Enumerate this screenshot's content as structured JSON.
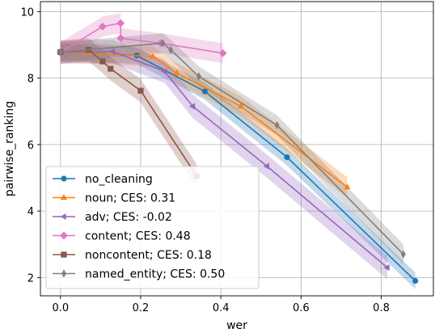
{
  "chart_data": {
    "type": "line",
    "title": "",
    "xlabel": "wer",
    "ylabel": "pairwise_ranking",
    "xlim": [
      -0.05,
      0.93
    ],
    "ylim": [
      1.45,
      10.3
    ],
    "xticks": [
      0.0,
      0.2,
      0.4,
      0.6,
      0.8
    ],
    "xtick_labels": [
      "0.0",
      "0.2",
      "0.4",
      "0.6",
      "0.8"
    ],
    "yticks": [
      2,
      4,
      6,
      8,
      10
    ],
    "ytick_labels": [
      "2",
      "4",
      "6",
      "8",
      "10"
    ],
    "grid": true,
    "legend_position": "lower-left",
    "series": [
      {
        "name": "no_cleaning",
        "color": "#1f77b4",
        "marker": "circle",
        "band": 0.25,
        "points": [
          [
            0.0,
            8.78
          ],
          [
            0.19,
            8.68
          ],
          [
            0.36,
            7.6
          ],
          [
            0.565,
            5.62
          ],
          [
            0.885,
            1.9
          ]
        ]
      },
      {
        "name": "noun; CES: 0.31",
        "color": "#ff7f0e",
        "marker": "triangle-up",
        "band": 0.3,
        "points": [
          [
            0.0,
            8.78
          ],
          [
            0.23,
            8.65
          ],
          [
            0.29,
            8.15
          ],
          [
            0.45,
            7.15
          ],
          [
            0.715,
            4.72
          ]
        ]
      },
      {
        "name": "adv; CES: -0.02",
        "color": "#9467bd",
        "marker": "triangle-left",
        "band": 0.35,
        "points": [
          [
            0.0,
            8.78
          ],
          [
            0.13,
            8.8
          ],
          [
            0.26,
            8.2
          ],
          [
            0.33,
            7.15
          ],
          [
            0.515,
            5.35
          ],
          [
            0.815,
            2.3
          ]
        ]
      },
      {
        "name": "content; CES: 0.48",
        "color": "#e377c2",
        "marker": "diamond",
        "band": 0.3,
        "points": [
          [
            0.0,
            8.78
          ],
          [
            0.105,
            9.55
          ],
          [
            0.15,
            9.65
          ],
          [
            0.15,
            9.2
          ],
          [
            0.25,
            9.05
          ],
          [
            0.405,
            8.75
          ]
        ]
      },
      {
        "name": "noncontent; CES: 0.18",
        "color": "#8c564b",
        "marker": "square",
        "band": 0.35,
        "points": [
          [
            0.0,
            8.78
          ],
          [
            0.07,
            8.85
          ],
          [
            0.105,
            8.5
          ],
          [
            0.125,
            8.28
          ],
          [
            0.2,
            7.62
          ],
          [
            0.34,
            5.05
          ]
        ]
      },
      {
        "name": "named_entity; CES: 0.50",
        "color": "#7f7f7f",
        "marker": "thin-diamond",
        "band": 0.3,
        "points": [
          [
            0.0,
            8.78
          ],
          [
            0.255,
            9.05
          ],
          [
            0.275,
            8.85
          ],
          [
            0.345,
            8.05
          ],
          [
            0.54,
            6.58
          ],
          [
            0.855,
            2.7
          ]
        ]
      }
    ]
  }
}
